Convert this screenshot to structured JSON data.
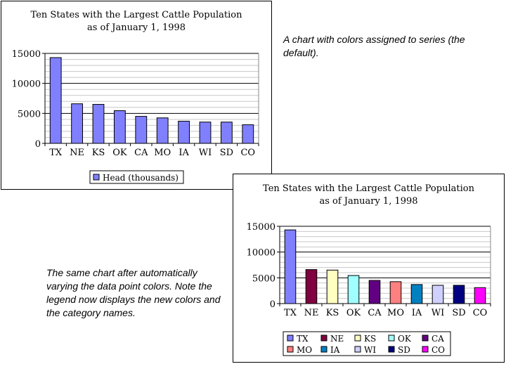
{
  "notes": {
    "first": "A chart with colors assigned to series (the default).",
    "second": "The same chart after automatically varying the data point colors. Note the legend now displays the new colors and the category names."
  },
  "chart_data": [
    {
      "type": "bar",
      "title": "Ten States with the Largest Cattle Population",
      "subtitle": "as of January 1, 1998",
      "categories": [
        "TX",
        "NE",
        "KS",
        "OK",
        "CA",
        "MO",
        "IA",
        "WI",
        "SD",
        "CO"
      ],
      "series": [
        {
          "name": "Head (thousands)",
          "values": [
            14300,
            6600,
            6500,
            5450,
            4500,
            4250,
            3700,
            3550,
            3550,
            3100
          ],
          "color": "#8080ff"
        }
      ],
      "ylim": [
        0,
        15000
      ],
      "yticks": [
        "0",
        "5000",
        "10000",
        "15000"
      ],
      "grid": true,
      "legend": "bottom",
      "vary_colors": false
    },
    {
      "type": "bar",
      "title": "Ten States with the Largest Cattle Population",
      "subtitle": "as of January 1, 1998",
      "categories": [
        "TX",
        "NE",
        "KS",
        "OK",
        "CA",
        "MO",
        "IA",
        "WI",
        "SD",
        "CO"
      ],
      "series": [
        {
          "name": "Head (thousands)",
          "values": [
            14300,
            6600,
            6500,
            5450,
            4500,
            4250,
            3700,
            3550,
            3550,
            3100
          ]
        }
      ],
      "point_colors": [
        "#8080ff",
        "#800040",
        "#ffffc0",
        "#a0ffff",
        "#600080",
        "#ff8080",
        "#0080c0",
        "#d0d0ff",
        "#000080",
        "#ff00ff"
      ],
      "ylim": [
        0,
        15000
      ],
      "yticks": [
        "0",
        "5000",
        "10000",
        "15000"
      ],
      "grid": true,
      "legend": "bottom",
      "vary_colors": true
    }
  ]
}
